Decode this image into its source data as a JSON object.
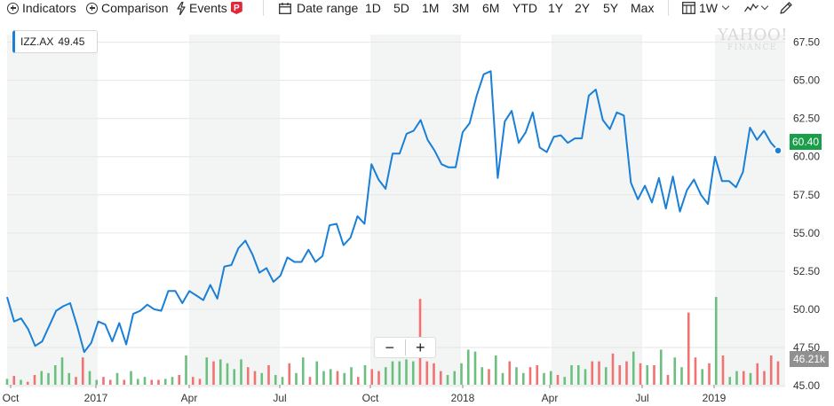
{
  "toolbar": {
    "indicators": "Indicators",
    "comparison": "Comparison",
    "events": "Events",
    "events_badge": "P",
    "date_range": "Date range",
    "ranges": [
      "1D",
      "5D",
      "1M",
      "3M",
      "6M",
      "YTD",
      "1Y",
      "2Y",
      "5Y",
      "Max"
    ],
    "interval": "1W"
  },
  "legend": {
    "symbol": "IZZ.AX",
    "value": "49.45"
  },
  "watermark": {
    "line1": "YAHOO!",
    "line2": "FINANCE"
  },
  "zoom": {
    "minus": "−",
    "plus": "+"
  },
  "last_price": "60.40",
  "last_volume": "46.21k",
  "colors": {
    "line": "#1a7fd6",
    "up": "#6cc07f",
    "down": "#f07272",
    "band": "#f3f5f4",
    "price_tag": "#1a9e4a",
    "volume_tag": "#909090"
  },
  "chart_data": {
    "type": "line",
    "title": "",
    "symbol": "IZZ.AX",
    "y_axis": {
      "range": [
        45.0,
        68.0
      ],
      "ticks": [
        "67.50",
        "65.00",
        "62.50",
        "60.00",
        "57.50",
        "55.00",
        "52.50",
        "50.00",
        "47.50",
        "45.00"
      ],
      "position": "right",
      "grid": true
    },
    "x_axis": {
      "ticks": [
        "Oct",
        "2017",
        "Apr",
        "Jul",
        "Oct",
        "2018",
        "Apr",
        "Jul",
        "2019"
      ]
    },
    "series": [
      {
        "type": "line",
        "values": [
          50.8,
          49.2,
          49.4,
          48.7,
          47.6,
          47.9,
          48.9,
          49.9,
          50.2,
          50.4,
          48.9,
          47.2,
          47.8,
          49.2,
          49.0,
          47.9,
          49.1,
          47.7,
          49.7,
          49.9,
          50.3,
          50.0,
          49.9,
          51.2,
          51.2,
          50.4,
          51.2,
          50.9,
          50.6,
          51.6,
          50.7,
          52.8,
          52.9,
          54.0,
          54.5,
          53.6,
          52.4,
          52.7,
          51.8,
          52.2,
          53.4,
          53.1,
          53.1,
          53.9,
          53.1,
          53.5,
          55.5,
          55.6,
          54.2,
          54.7,
          56.1,
          55.6,
          59.5,
          58.5,
          57.9,
          60.2,
          60.2,
          61.5,
          61.7,
          62.4,
          61.1,
          60.4,
          59.5,
          59.3,
          59.3,
          61.6,
          62.2,
          64.0,
          65.4,
          65.6,
          58.6,
          62.3,
          63.0,
          60.9,
          61.6,
          62.9,
          60.6,
          60.3,
          61.3,
          61.4,
          60.9,
          61.2,
          61.2,
          64.0,
          64.4,
          62.4,
          61.8,
          62.9,
          62.7,
          58.3,
          57.2,
          58.1,
          57.0,
          58.6,
          56.6,
          58.7,
          56.4,
          57.8,
          58.5,
          57.5,
          56.9,
          60.0,
          58.4,
          58.4,
          58.0,
          59.0,
          61.9,
          61.1,
          61.7,
          60.9,
          60.4
        ]
      }
    ],
    "volume": {
      "values": [
        6,
        9,
        5,
        3,
        10,
        14,
        12,
        20,
        28,
        12,
        8,
        28,
        14,
        5,
        8,
        5,
        12,
        5,
        14,
        6,
        8,
        5,
        5,
        6,
        8,
        10,
        30,
        8,
        6,
        28,
        24,
        26,
        22,
        16,
        26,
        18,
        14,
        12,
        20,
        10,
        8,
        22,
        12,
        28,
        8,
        24,
        14,
        16,
        14,
        12,
        18,
        8,
        20,
        16,
        14,
        18,
        24,
        24,
        26,
        24,
        88,
        24,
        22,
        14,
        10,
        14,
        22,
        36,
        34,
        18,
        16,
        30,
        12,
        24,
        18,
        12,
        18,
        20,
        12,
        14,
        10,
        8,
        20,
        20,
        16,
        24,
        24,
        18,
        32,
        20,
        24,
        34,
        22,
        20,
        20,
        36,
        10,
        28,
        18,
        74,
        28,
        16,
        22,
        90,
        30,
        8,
        14,
        14,
        12,
        22,
        14,
        30,
        24
      ],
      "max_label": "46.21k"
    },
    "grid": true,
    "legend_placement": "top-left"
  }
}
